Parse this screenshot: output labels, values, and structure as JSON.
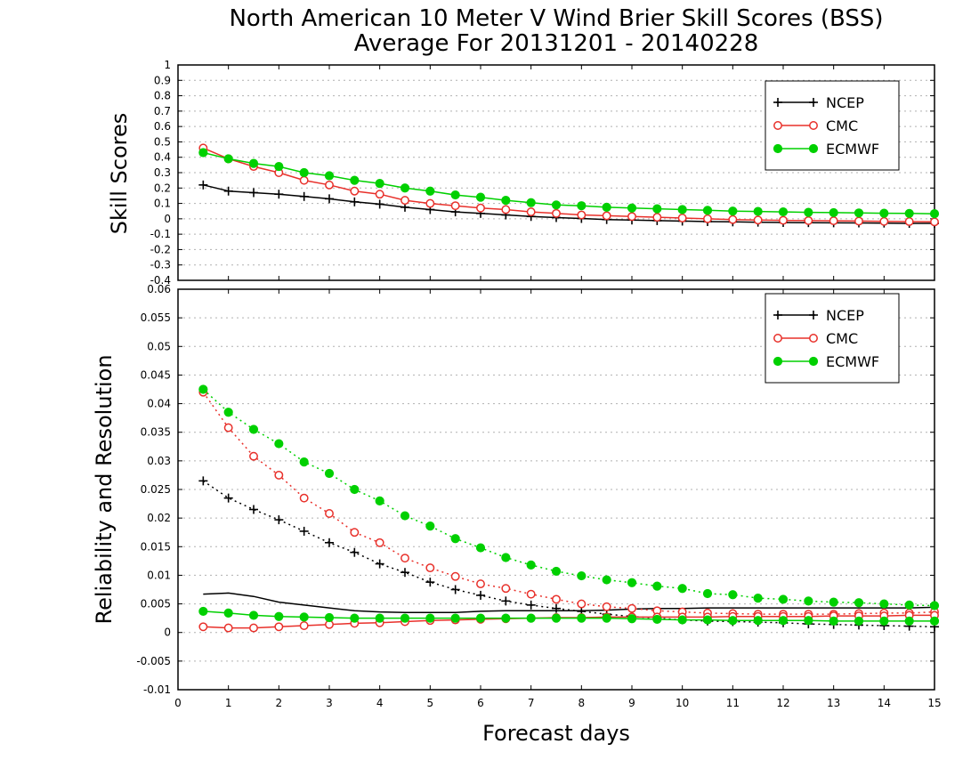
{
  "title": "North American 10 Meter V Wind Brier Skill Scores (BSS)",
  "subtitle": "Average For 20131201 - 20140228",
  "xlabel": "Forecast days",
  "colors": {
    "NCEP": "#000000",
    "CMC": "#e8302a",
    "ECMWF": "#00d000",
    "grid": "#b0b0b0"
  },
  "chart_data": [
    {
      "type": "line",
      "panel": "top",
      "ylabel": "Skill Scores",
      "xlim": [
        0,
        15
      ],
      "ylim": [
        -0.4,
        1
      ],
      "xticks": [
        "0",
        "1",
        "2",
        "3",
        "4",
        "5",
        "6",
        "7",
        "8",
        "9",
        "10",
        "11",
        "12",
        "13",
        "14",
        "15"
      ],
      "yticks": [
        "-0.4",
        "-0.3",
        "-0.2",
        "-0.1",
        "0",
        "0.1",
        "0.2",
        "0.3",
        "0.4",
        "0.5",
        "0.6",
        "0.7",
        "0.8",
        "0.9",
        "1"
      ],
      "grid": true,
      "legend": {
        "placement": "top-right",
        "entries": [
          "NCEP",
          "CMC",
          "ECMWF"
        ]
      },
      "x": [
        0.5,
        1,
        1.5,
        2,
        2.5,
        3,
        3.5,
        4,
        4.5,
        5,
        5.5,
        6,
        6.5,
        7,
        7.5,
        8,
        8.5,
        9,
        9.5,
        10,
        10.5,
        11,
        11.5,
        12,
        12.5,
        13,
        13.5,
        14,
        14.5,
        15
      ],
      "series": [
        {
          "name": "NCEP",
          "style": "solid",
          "marker": "plus",
          "values": [
            0.22,
            0.18,
            0.17,
            0.16,
            0.145,
            0.13,
            0.11,
            0.095,
            0.075,
            0.06,
            0.045,
            0.035,
            0.025,
            0.015,
            0.008,
            0.002,
            -0.005,
            -0.008,
            -0.012,
            -0.015,
            -0.018,
            -0.02,
            -0.022,
            -0.024,
            -0.025,
            -0.026,
            -0.027,
            -0.028,
            -0.03,
            -0.03
          ]
        },
        {
          "name": "CMC",
          "style": "solid",
          "marker": "open-circle",
          "values": [
            0.46,
            0.39,
            0.34,
            0.3,
            0.25,
            0.22,
            0.18,
            0.16,
            0.12,
            0.1,
            0.085,
            0.07,
            0.06,
            0.045,
            0.035,
            0.025,
            0.02,
            0.015,
            0.01,
            0.005,
            0.0,
            -0.005,
            -0.008,
            -0.01,
            -0.012,
            -0.013,
            -0.015,
            -0.017,
            -0.018,
            -0.02
          ]
        },
        {
          "name": "ECMWF",
          "style": "solid",
          "marker": "filled-circle",
          "values": [
            0.43,
            0.39,
            0.36,
            0.34,
            0.3,
            0.28,
            0.25,
            0.23,
            0.2,
            0.18,
            0.155,
            0.14,
            0.12,
            0.105,
            0.09,
            0.085,
            0.075,
            0.07,
            0.065,
            0.06,
            0.055,
            0.05,
            0.048,
            0.045,
            0.042,
            0.04,
            0.038,
            0.036,
            0.035,
            0.033
          ]
        }
      ]
    },
    {
      "type": "line",
      "panel": "bottom",
      "ylabel": "Reliability and Resolution",
      "xlim": [
        0,
        15
      ],
      "ylim": [
        -0.01,
        0.06
      ],
      "xticks": [
        "0",
        "1",
        "2",
        "3",
        "4",
        "5",
        "6",
        "7",
        "8",
        "9",
        "10",
        "11",
        "12",
        "13",
        "14",
        "15"
      ],
      "yticks": [
        "-0.01",
        "-0.005",
        "0",
        "0.005",
        "0.01",
        "0.015",
        "0.02",
        "0.025",
        "0.03",
        "0.035",
        "0.04",
        "0.045",
        "0.05",
        "0.055",
        "0.06"
      ],
      "grid": true,
      "legend": {
        "placement": "top-right",
        "entries": [
          "NCEP",
          "CMC",
          "ECMWF"
        ]
      },
      "x": [
        0.5,
        1,
        1.5,
        2,
        2.5,
        3,
        3.5,
        4,
        4.5,
        5,
        5.5,
        6,
        6.5,
        7,
        7.5,
        8,
        8.5,
        9,
        9.5,
        10,
        10.5,
        11,
        11.5,
        12,
        12.5,
        13,
        13.5,
        14,
        14.5,
        15
      ],
      "series": [
        {
          "name": "NCEP",
          "measure": "resolution",
          "style": "dotted",
          "marker": "plus",
          "values": [
            0.0265,
            0.0235,
            0.0215,
            0.0197,
            0.0177,
            0.0157,
            0.014,
            0.012,
            0.0105,
            0.0088,
            0.0075,
            0.0065,
            0.0055,
            0.0048,
            0.0042,
            0.0037,
            0.0032,
            0.0028,
            0.0025,
            0.0022,
            0.002,
            0.0019,
            0.0018,
            0.0017,
            0.0015,
            0.0014,
            0.0013,
            0.0012,
            0.0011,
            0.001
          ]
        },
        {
          "name": "NCEP",
          "measure": "reliability",
          "style": "solid",
          "marker": "none",
          "values": [
            0.0067,
            0.0069,
            0.0063,
            0.0053,
            0.0048,
            0.0043,
            0.0038,
            0.0036,
            0.0035,
            0.0035,
            0.0035,
            0.0037,
            0.0038,
            0.0038,
            0.0038,
            0.0038,
            0.0039,
            0.0041,
            0.0042,
            0.0042,
            0.0043,
            0.0043,
            0.0043,
            0.0043,
            0.0043,
            0.0043,
            0.0043,
            0.0043,
            0.0043,
            0.0044
          ]
        },
        {
          "name": "CMC",
          "measure": "resolution",
          "style": "dotted",
          "marker": "open-circle",
          "values": [
            0.042,
            0.0358,
            0.0308,
            0.0275,
            0.0235,
            0.0208,
            0.0175,
            0.0157,
            0.013,
            0.0113,
            0.0098,
            0.0085,
            0.0077,
            0.0067,
            0.0058,
            0.005,
            0.0045,
            0.0042,
            0.0038,
            0.0036,
            0.0034,
            0.0033,
            0.0032,
            0.0032,
            0.0032,
            0.0032,
            0.0033,
            0.0034,
            0.0034,
            0.0036
          ]
        },
        {
          "name": "CMC",
          "measure": "reliability",
          "style": "solid",
          "marker": "open-circle",
          "values": [
            0.001,
            0.0008,
            0.0008,
            0.001,
            0.0012,
            0.0014,
            0.0016,
            0.0017,
            0.0019,
            0.0021,
            0.0022,
            0.0023,
            0.0024,
            0.0025,
            0.0026,
            0.0026,
            0.0027,
            0.0027,
            0.0027,
            0.0027,
            0.0027,
            0.0028,
            0.0028,
            0.0028,
            0.0028,
            0.0029,
            0.0029,
            0.0029,
            0.003,
            0.003
          ]
        },
        {
          "name": "ECMWF",
          "measure": "resolution",
          "style": "dotted",
          "marker": "filled-circle",
          "values": [
            0.0425,
            0.0385,
            0.0355,
            0.033,
            0.0298,
            0.0278,
            0.025,
            0.023,
            0.0204,
            0.0186,
            0.0164,
            0.0148,
            0.0131,
            0.0118,
            0.0107,
            0.0099,
            0.0092,
            0.0087,
            0.0081,
            0.0077,
            0.0068,
            0.0066,
            0.006,
            0.0058,
            0.0055,
            0.0053,
            0.0052,
            0.005,
            0.0048,
            0.0047
          ]
        },
        {
          "name": "ECMWF",
          "measure": "reliability",
          "style": "solid",
          "marker": "filled-circle",
          "values": [
            0.0037,
            0.0034,
            0.003,
            0.0028,
            0.0027,
            0.0026,
            0.0025,
            0.0025,
            0.0025,
            0.0025,
            0.0025,
            0.0025,
            0.0025,
            0.0025,
            0.0025,
            0.0025,
            0.0025,
            0.0024,
            0.0023,
            0.0022,
            0.0022,
            0.0021,
            0.0021,
            0.0021,
            0.0021,
            0.002,
            0.002,
            0.002,
            0.002,
            0.002
          ]
        }
      ]
    }
  ]
}
